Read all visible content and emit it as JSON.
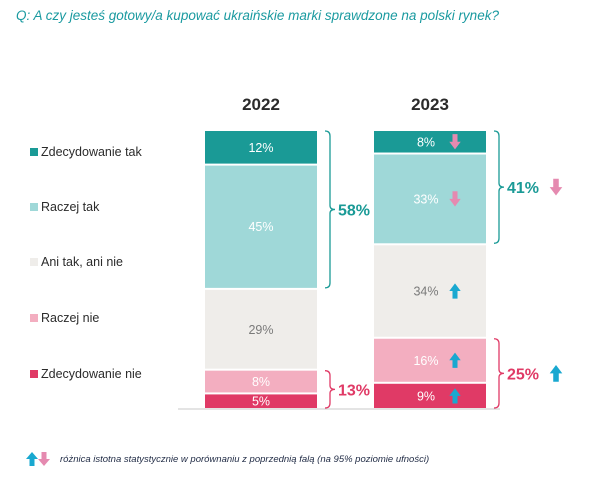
{
  "question": "Q: A czy jesteś gotowy/a kupować ukraińskie marki sprawdzone na polski rynek?",
  "colors": {
    "zdecydowanie_tak": "#1a9a96",
    "raczej_tak": "#9fd8d8",
    "ani_tak_ani_nie": "#efedea",
    "raczej_nie": "#f3aec0",
    "zdecydowanie_nie": "#e03a66",
    "arrow_up": "#19a8d0",
    "arrow_down": "#e58ab0",
    "bracket_teal": "#1a9a96",
    "bracket_pink": "#e03a66"
  },
  "chart_data": {
    "type": "bar",
    "stacked": true,
    "categories": [
      "2022",
      "2023"
    ],
    "series": [
      {
        "name": "Zdecydowanie tak",
        "values": [
          12,
          8
        ],
        "labels": [
          "12%",
          "8%"
        ],
        "color_key": "zdecydowanie_tak",
        "label_color": "#ffffff",
        "changes": [
          null,
          "down"
        ]
      },
      {
        "name": "Raczej tak",
        "values": [
          45,
          33
        ],
        "labels": [
          "45%",
          "33%"
        ],
        "color_key": "raczej_tak",
        "label_color": "#ffffff",
        "changes": [
          null,
          "down"
        ]
      },
      {
        "name": "Ani tak, ani nie",
        "values": [
          29,
          34
        ],
        "labels": [
          "29%",
          "34%"
        ],
        "color_key": "ani_tak_ani_nie",
        "label_color": "#7a7a7a",
        "changes": [
          null,
          "up"
        ]
      },
      {
        "name": "Raczej nie",
        "values": [
          8,
          16
        ],
        "labels": [
          "8%",
          "16%"
        ],
        "color_key": "raczej_nie",
        "label_color": "#ffffff",
        "changes": [
          null,
          "up"
        ]
      },
      {
        "name": "Zdecydowanie nie",
        "values": [
          5,
          9
        ],
        "labels": [
          "5%",
          "9%"
        ],
        "color_key": "zdecydowanie_nie",
        "label_color": "#ffffff",
        "changes": [
          null,
          "up"
        ]
      }
    ],
    "brackets": [
      {
        "bar": "2022",
        "series": [
          "Zdecydowanie tak",
          "Raczej tak"
        ],
        "label": "58%",
        "color_key": "bracket_teal",
        "change": null
      },
      {
        "bar": "2022",
        "series": [
          "Raczej nie",
          "Zdecydowanie nie"
        ],
        "label": "13%",
        "color_key": "bracket_pink",
        "change": null
      },
      {
        "bar": "2023",
        "series": [
          "Zdecydowanie tak",
          "Raczej tak"
        ],
        "label": "41%",
        "color_key": "bracket_teal",
        "change": "down"
      },
      {
        "bar": "2023",
        "series": [
          "Raczej nie",
          "Zdecydowanie nie"
        ],
        "label": "25%",
        "color_key": "bracket_pink",
        "change": "up"
      }
    ],
    "legend_position": "left"
  },
  "footnote": {
    "text": "różnica istotna statystycznie w porównaniu z poprzednią falą (na 95% poziomie ufności)",
    "icons": [
      "arrow-up-icon",
      "arrow-down-icon"
    ]
  }
}
